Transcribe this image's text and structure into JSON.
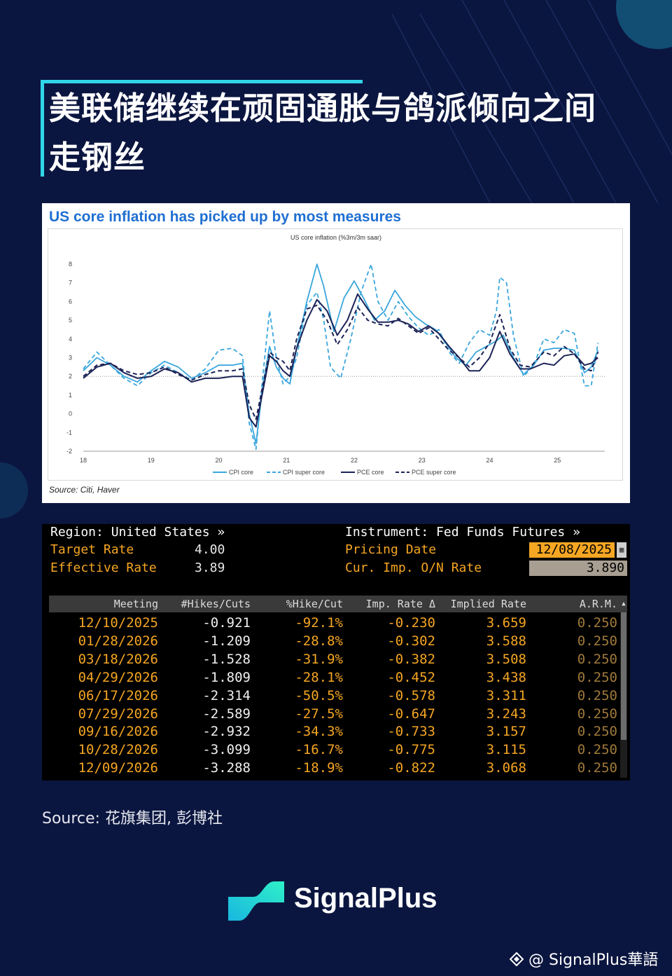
{
  "headline": {
    "line1": "美联储继续在顽固通胀与鸽派倾向之间",
    "line2": "走钢丝"
  },
  "chart": {
    "heading": "US core inflation has picked up by most measures",
    "source": "Source: Citi, Haver"
  },
  "chart_data": {
    "type": "line",
    "title": "US core inflation (%3m/3m saar)",
    "xlabel": "",
    "ylabel": "",
    "ylim": [
      -2,
      8
    ],
    "xlim": [
      18,
      25.7
    ],
    "x_ticks": [
      "18",
      "19",
      "20",
      "21",
      "22",
      "23",
      "24",
      "25"
    ],
    "y_ticks": [
      "8",
      "7",
      "6",
      "5",
      "4",
      "3",
      "2",
      "1",
      "0",
      "-1",
      "-2"
    ],
    "reference_line": 2,
    "legend_position": "bottom",
    "series": [
      {
        "name": "CPI core",
        "color": "#3aa6dd",
        "dash": "solid",
        "points": [
          [
            18.0,
            2.3
          ],
          [
            18.2,
            3.0
          ],
          [
            18.4,
            2.6
          ],
          [
            18.6,
            2.0
          ],
          [
            18.8,
            1.7
          ],
          [
            19.0,
            2.3
          ],
          [
            19.2,
            2.8
          ],
          [
            19.4,
            2.5
          ],
          [
            19.6,
            1.9
          ],
          [
            19.8,
            2.2
          ],
          [
            20.0,
            2.6
          ],
          [
            20.2,
            2.6
          ],
          [
            20.35,
            2.7
          ],
          [
            20.45,
            0.0
          ],
          [
            20.55,
            -1.6
          ],
          [
            20.65,
            1.5
          ],
          [
            20.75,
            3.6
          ],
          [
            20.85,
            2.5
          ],
          [
            20.95,
            1.9
          ],
          [
            21.05,
            1.6
          ],
          [
            21.15,
            3.5
          ],
          [
            21.3,
            6.0
          ],
          [
            21.45,
            8.0
          ],
          [
            21.55,
            6.8
          ],
          [
            21.7,
            4.4
          ],
          [
            21.85,
            6.2
          ],
          [
            22.0,
            7.1
          ],
          [
            22.15,
            6.1
          ],
          [
            22.3,
            5.0
          ],
          [
            22.45,
            5.5
          ],
          [
            22.6,
            6.6
          ],
          [
            22.75,
            5.8
          ],
          [
            22.9,
            5.2
          ],
          [
            23.05,
            4.8
          ],
          [
            23.2,
            4.5
          ],
          [
            23.35,
            3.8
          ],
          [
            23.5,
            3.0
          ],
          [
            23.65,
            2.6
          ],
          [
            23.8,
            3.3
          ],
          [
            23.95,
            3.6
          ],
          [
            24.1,
            3.9
          ],
          [
            24.2,
            4.2
          ],
          [
            24.35,
            3.0
          ],
          [
            24.5,
            2.1
          ],
          [
            24.65,
            2.6
          ],
          [
            24.8,
            3.4
          ],
          [
            24.95,
            3.5
          ],
          [
            25.1,
            3.5
          ],
          [
            25.25,
            3.4
          ],
          [
            25.4,
            2.2
          ],
          [
            25.5,
            2.5
          ],
          [
            25.6,
            3.4
          ]
        ]
      },
      {
        "name": "CPI super core",
        "color": "#3aa6dd",
        "dash": "dashed",
        "points": [
          [
            18.0,
            2.4
          ],
          [
            18.2,
            3.3
          ],
          [
            18.4,
            2.6
          ],
          [
            18.6,
            1.9
          ],
          [
            18.8,
            1.5
          ],
          [
            19.0,
            2.2
          ],
          [
            19.2,
            2.6
          ],
          [
            19.4,
            2.2
          ],
          [
            19.6,
            1.8
          ],
          [
            19.8,
            2.4
          ],
          [
            20.0,
            3.4
          ],
          [
            20.2,
            3.5
          ],
          [
            20.35,
            3.1
          ],
          [
            20.45,
            -0.5
          ],
          [
            20.55,
            -1.9
          ],
          [
            20.65,
            2.0
          ],
          [
            20.75,
            5.5
          ],
          [
            20.85,
            3.0
          ],
          [
            20.95,
            1.6
          ],
          [
            21.05,
            2.0
          ],
          [
            21.15,
            3.0
          ],
          [
            21.3,
            5.8
          ],
          [
            21.45,
            6.5
          ],
          [
            21.55,
            5.0
          ],
          [
            21.65,
            2.5
          ],
          [
            21.8,
            1.9
          ],
          [
            21.95,
            4.0
          ],
          [
            22.1,
            6.5
          ],
          [
            22.25,
            8.0
          ],
          [
            22.35,
            6.0
          ],
          [
            22.5,
            5.0
          ],
          [
            22.65,
            6.0
          ],
          [
            22.8,
            5.2
          ],
          [
            22.95,
            4.6
          ],
          [
            23.1,
            4.2
          ],
          [
            23.25,
            4.5
          ],
          [
            23.4,
            3.3
          ],
          [
            23.55,
            2.7
          ],
          [
            23.7,
            3.8
          ],
          [
            23.85,
            4.5
          ],
          [
            24.0,
            4.2
          ],
          [
            24.1,
            5.5
          ],
          [
            24.15,
            7.3
          ],
          [
            24.25,
            7.0
          ],
          [
            24.35,
            4.2
          ],
          [
            24.5,
            2.0
          ],
          [
            24.65,
            2.6
          ],
          [
            24.8,
            4.0
          ],
          [
            24.95,
            3.8
          ],
          [
            25.1,
            4.5
          ],
          [
            25.25,
            4.3
          ],
          [
            25.4,
            1.5
          ],
          [
            25.5,
            1.5
          ],
          [
            25.6,
            3.8
          ]
        ]
      },
      {
        "name": "PCE core",
        "color": "#1b2356",
        "dash": "solid",
        "points": [
          [
            18.0,
            1.9
          ],
          [
            18.2,
            2.5
          ],
          [
            18.4,
            2.7
          ],
          [
            18.6,
            2.2
          ],
          [
            18.8,
            1.9
          ],
          [
            19.0,
            2.0
          ],
          [
            19.2,
            2.4
          ],
          [
            19.4,
            2.2
          ],
          [
            19.6,
            1.7
          ],
          [
            19.8,
            1.9
          ],
          [
            20.0,
            1.9
          ],
          [
            20.2,
            2.0
          ],
          [
            20.35,
            2.0
          ],
          [
            20.45,
            -0.2
          ],
          [
            20.55,
            -0.7
          ],
          [
            20.65,
            1.2
          ],
          [
            20.75,
            3.1
          ],
          [
            20.85,
            2.8
          ],
          [
            20.95,
            2.3
          ],
          [
            21.05,
            2.0
          ],
          [
            21.15,
            3.5
          ],
          [
            21.3,
            5.0
          ],
          [
            21.45,
            6.1
          ],
          [
            21.6,
            5.5
          ],
          [
            21.75,
            4.2
          ],
          [
            21.9,
            5.0
          ],
          [
            22.05,
            6.4
          ],
          [
            22.2,
            5.6
          ],
          [
            22.35,
            4.9
          ],
          [
            22.5,
            4.9
          ],
          [
            22.65,
            5.0
          ],
          [
            22.8,
            4.8
          ],
          [
            22.95,
            4.4
          ],
          [
            23.1,
            4.7
          ],
          [
            23.25,
            4.3
          ],
          [
            23.4,
            3.6
          ],
          [
            23.55,
            3.0
          ],
          [
            23.7,
            2.3
          ],
          [
            23.85,
            2.3
          ],
          [
            24.0,
            3.0
          ],
          [
            24.15,
            4.4
          ],
          [
            24.3,
            3.2
          ],
          [
            24.45,
            2.4
          ],
          [
            24.6,
            2.4
          ],
          [
            24.8,
            2.7
          ],
          [
            24.95,
            2.6
          ],
          [
            25.1,
            3.1
          ],
          [
            25.25,
            3.2
          ],
          [
            25.4,
            2.6
          ],
          [
            25.5,
            2.7
          ],
          [
            25.6,
            3.0
          ]
        ]
      },
      {
        "name": "PCE super core",
        "color": "#1b2356",
        "dash": "dashed",
        "points": [
          [
            18.0,
            2.0
          ],
          [
            18.2,
            2.6
          ],
          [
            18.4,
            2.7
          ],
          [
            18.6,
            2.3
          ],
          [
            18.8,
            2.1
          ],
          [
            19.0,
            2.2
          ],
          [
            19.2,
            2.5
          ],
          [
            19.4,
            2.1
          ],
          [
            19.6,
            1.8
          ],
          [
            19.8,
            2.1
          ],
          [
            20.0,
            2.3
          ],
          [
            20.2,
            2.3
          ],
          [
            20.35,
            2.4
          ],
          [
            20.45,
            0.5
          ],
          [
            20.55,
            -0.3
          ],
          [
            20.65,
            1.5
          ],
          [
            20.75,
            3.3
          ],
          [
            20.85,
            3.0
          ],
          [
            20.95,
            2.8
          ],
          [
            21.05,
            2.3
          ],
          [
            21.15,
            4.0
          ],
          [
            21.3,
            5.6
          ],
          [
            21.45,
            5.8
          ],
          [
            21.6,
            5.0
          ],
          [
            21.75,
            3.7
          ],
          [
            21.9,
            4.5
          ],
          [
            22.05,
            5.7
          ],
          [
            22.2,
            5.0
          ],
          [
            22.35,
            4.8
          ],
          [
            22.5,
            4.7
          ],
          [
            22.65,
            5.1
          ],
          [
            22.8,
            4.7
          ],
          [
            22.95,
            4.3
          ],
          [
            23.1,
            4.6
          ],
          [
            23.25,
            4.0
          ],
          [
            23.4,
            3.4
          ],
          [
            23.55,
            3.0
          ],
          [
            23.7,
            2.5
          ],
          [
            23.85,
            3.0
          ],
          [
            24.0,
            3.8
          ],
          [
            24.15,
            5.3
          ],
          [
            24.3,
            3.5
          ],
          [
            24.45,
            2.6
          ],
          [
            24.6,
            2.5
          ],
          [
            24.8,
            3.3
          ],
          [
            24.95,
            3.1
          ],
          [
            25.1,
            3.6
          ],
          [
            25.25,
            3.2
          ],
          [
            25.4,
            2.4
          ],
          [
            25.5,
            2.3
          ],
          [
            25.6,
            3.3
          ]
        ]
      }
    ]
  },
  "terminal": {
    "region_label": "Region: United States »",
    "instrument_label": "Instrument: Fed Funds Futures »",
    "target_rate_label": "Target Rate",
    "target_rate_value": "4.00",
    "effective_rate_label": "Effective Rate",
    "effective_rate_value": "3.89",
    "pricing_date_label": "Pricing Date",
    "pricing_date_value": "12/08/2025",
    "cur_imp_label": "Cur. Imp. O/N Rate",
    "cur_imp_value": "3.890",
    "columns": [
      "Meeting",
      "#Hikes/Cuts",
      "%Hike/Cut",
      "Imp. Rate Δ",
      "Implied Rate",
      "A.R.M."
    ],
    "rows": [
      [
        "12/10/2025",
        "-0.921",
        "-92.1%",
        "-0.230",
        "3.659",
        "0.250"
      ],
      [
        "01/28/2026",
        "-1.209",
        "-28.8%",
        "-0.302",
        "3.588",
        "0.250"
      ],
      [
        "03/18/2026",
        "-1.528",
        "-31.9%",
        "-0.382",
        "3.508",
        "0.250"
      ],
      [
        "04/29/2026",
        "-1.809",
        "-28.1%",
        "-0.452",
        "3.438",
        "0.250"
      ],
      [
        "06/17/2026",
        "-2.314",
        "-50.5%",
        "-0.578",
        "3.311",
        "0.250"
      ],
      [
        "07/29/2026",
        "-2.589",
        "-27.5%",
        "-0.647",
        "3.243",
        "0.250"
      ],
      [
        "09/16/2026",
        "-2.932",
        "-34.3%",
        "-0.733",
        "3.157",
        "0.250"
      ],
      [
        "10/28/2026",
        "-3.099",
        "-16.7%",
        "-0.775",
        "3.115",
        "0.250"
      ],
      [
        "12/09/2026",
        "-3.288",
        "-18.9%",
        "-0.822",
        "3.068",
        "0.250"
      ]
    ]
  },
  "source_note": "Source: 花旗集团, 彭博社",
  "brand": {
    "name": "SignalPlus"
  },
  "watermark": {
    "text": "@ SignalPlus華語"
  },
  "colors": {
    "background": "#0b1640",
    "accent": "#2fd6e8",
    "terminal_orange": "#f5a623"
  }
}
